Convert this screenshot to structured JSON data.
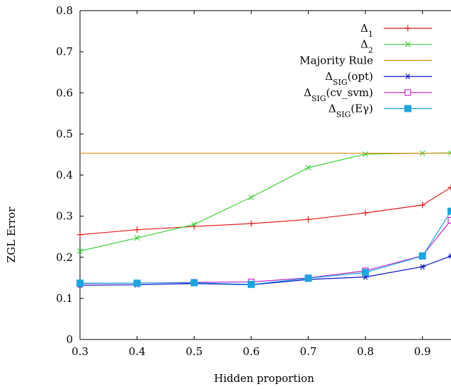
{
  "chart_data": {
    "type": "line",
    "title": "",
    "xlabel": "Hidden proportion",
    "ylabel": "ZGL Error",
    "xlim": [
      0.3,
      0.95
    ],
    "ylim": [
      0,
      0.8
    ],
    "xticks": [
      0.3,
      0.4,
      0.5,
      0.6,
      0.7,
      0.8,
      0.9
    ],
    "xtick_labels": [
      "0.3",
      "0.4",
      "0.5",
      "0.6",
      "0.7",
      "0.8",
      "0.9"
    ],
    "yticks": [
      0,
      0.1,
      0.2,
      0.3,
      0.4,
      0.5,
      0.6,
      0.7,
      0.8
    ],
    "ytick_labels": [
      "0",
      "0.1",
      "0.2",
      "0.3",
      "0.4",
      "0.5",
      "0.6",
      "0.7",
      "0.8"
    ],
    "grid": false,
    "legend_position": "top-right",
    "x": [
      0.3,
      0.4,
      0.5,
      0.6,
      0.7,
      0.8,
      0.9,
      0.95
    ],
    "series": [
      {
        "name": "Δ1",
        "base": "Δ",
        "sub": "1",
        "arg": "",
        "color": "#e41a1c",
        "marker": "plus",
        "values": [
          0.255,
          0.267,
          0.275,
          0.282,
          0.292,
          0.308,
          0.327,
          0.37
        ]
      },
      {
        "name": "Δ2",
        "base": "Δ",
        "sub": "2",
        "arg": "",
        "color": "#3ad23a",
        "marker": "x",
        "values": [
          0.215,
          0.247,
          0.28,
          0.346,
          0.418,
          0.451,
          0.453,
          0.454
        ]
      },
      {
        "name": "Majority Rule",
        "base": "Majority Rule",
        "sub": "",
        "arg": "",
        "color": "#e88a10",
        "marker": "none",
        "values": [
          0.453,
          0.453,
          0.453,
          0.453,
          0.453,
          0.453,
          0.453,
          0.453
        ]
      },
      {
        "name": "ΔSIG(opt)",
        "base": "Δ",
        "sub": "SIG",
        "arg": "(opt)",
        "color": "#1010c8",
        "marker": "star",
        "values": [
          0.132,
          0.133,
          0.136,
          0.133,
          0.146,
          0.152,
          0.177,
          0.203
        ]
      },
      {
        "name": "ΔSIG(cv_svm)",
        "base": "Δ",
        "sub": "SIG",
        "arg": "(cv_svm)",
        "color": "#c026c8",
        "marker": "square-open",
        "values": [
          0.136,
          0.137,
          0.139,
          0.14,
          0.15,
          0.167,
          0.204,
          0.29
        ]
      },
      {
        "name": "ΔSIG(Eγ)",
        "base": "Δ",
        "sub": "SIG",
        "arg": "(Eγ)",
        "color": "#1aa6e0",
        "marker": "square-filled",
        "values": [
          0.137,
          0.137,
          0.138,
          0.134,
          0.149,
          0.163,
          0.203,
          0.312
        ]
      }
    ]
  }
}
